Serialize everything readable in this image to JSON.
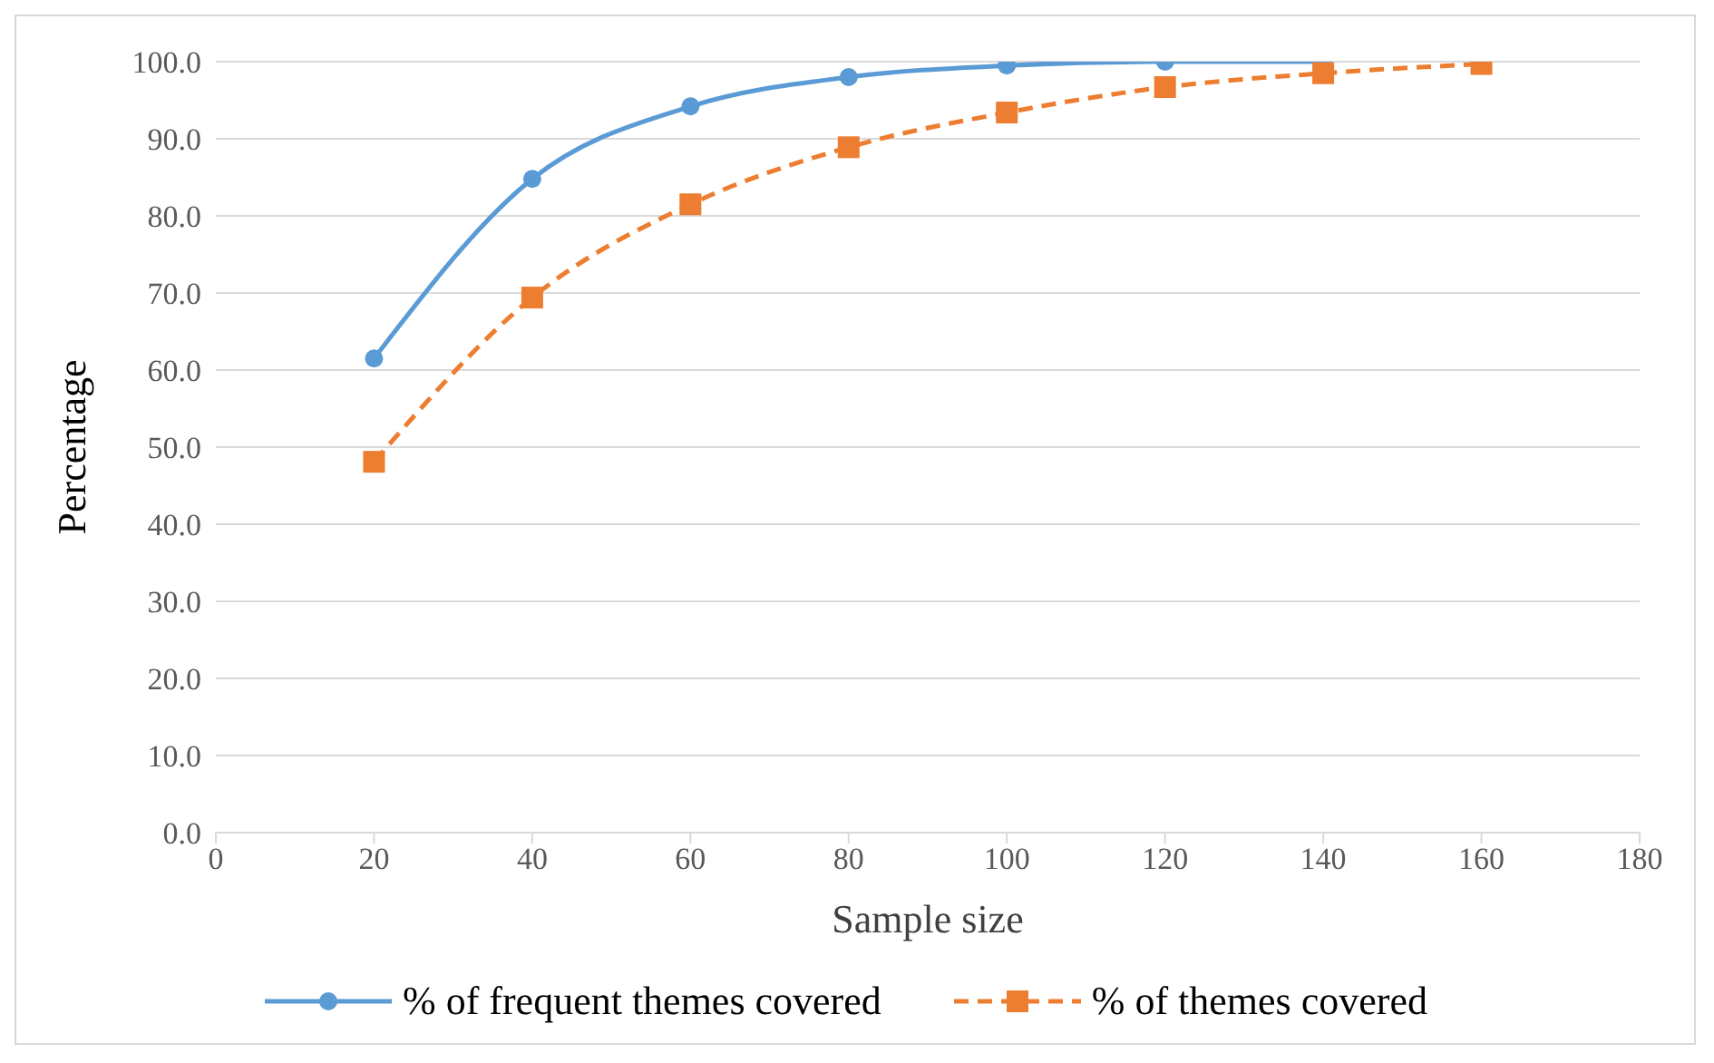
{
  "chart_data": {
    "type": "line",
    "xlabel": "Sample size",
    "ylabel": "Percentage",
    "x": [
      20,
      40,
      60,
      80,
      100,
      120,
      140,
      160
    ],
    "series": [
      {
        "name": "% of frequent themes covered",
        "color": "#5b9bd5",
        "marker": "circle",
        "line_style": "solid",
        "values": [
          61.5,
          84.8,
          94.2,
          98.0,
          99.5,
          100.0,
          100.0,
          null
        ]
      },
      {
        "name": "% of themes covered",
        "color": "#ed7d31",
        "marker": "square",
        "line_style": "dashed",
        "values": [
          48.1,
          69.4,
          81.5,
          88.9,
          93.4,
          96.7,
          98.5,
          99.7
        ]
      }
    ],
    "xlim": [
      0,
      180
    ],
    "xticks": [
      0,
      20,
      40,
      60,
      80,
      100,
      120,
      140,
      160,
      180
    ],
    "ylim": [
      0,
      100
    ],
    "yticks": [
      {
        "value": 0,
        "label": "0.0"
      },
      {
        "value": 10,
        "label": "10.0"
      },
      {
        "value": 20,
        "label": "20.0"
      },
      {
        "value": 30,
        "label": "30.0"
      },
      {
        "value": 40,
        "label": "40.0"
      },
      {
        "value": 50,
        "label": "50.0"
      },
      {
        "value": 60,
        "label": "60.0"
      },
      {
        "value": 70,
        "label": "70.0"
      },
      {
        "value": 80,
        "label": "80.0"
      },
      {
        "value": 90,
        "label": "90.0"
      },
      {
        "value": 100,
        "label": "100.0"
      }
    ],
    "grid": "y",
    "legend": "bottom"
  }
}
